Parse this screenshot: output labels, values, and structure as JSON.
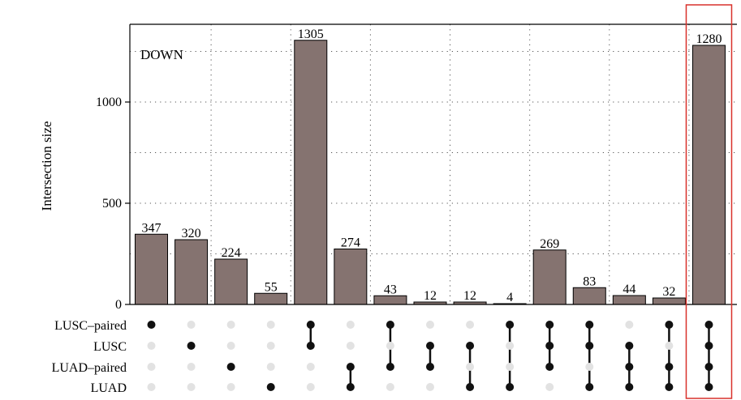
{
  "chart_data": {
    "type": "bar",
    "annotation": "DOWN",
    "ylabel": "Intersection size",
    "ylim": [
      0,
      1400
    ],
    "yticks": [
      0,
      500,
      1000
    ],
    "grid": true,
    "sets": [
      "LUSC–paired",
      "LUSC",
      "LUAD–paired",
      "LUAD"
    ],
    "values": [
      347,
      320,
      224,
      55,
      1305,
      274,
      43,
      12,
      12,
      4,
      269,
      83,
      44,
      32,
      1280
    ],
    "value_labels": [
      "347",
      "320",
      "224",
      "55",
      "1305",
      "274",
      "43",
      "12",
      "12",
      "4",
      "269",
      "83",
      "44",
      "32",
      "1280"
    ],
    "membership": [
      [
        0
      ],
      [
        1
      ],
      [
        2
      ],
      [
        3
      ],
      [
        0,
        1
      ],
      [
        2,
        3
      ],
      [
        0,
        2
      ],
      [
        1,
        2
      ],
      [
        1,
        3
      ],
      [
        0,
        3
      ],
      [
        0,
        1,
        2
      ],
      [
        0,
        1,
        3
      ],
      [
        1,
        2,
        3
      ],
      [
        0,
        2,
        3
      ],
      [
        0,
        1,
        2,
        3
      ]
    ],
    "highlighted_column": 14,
    "colors": {
      "bar": "#857370",
      "dot_active": "#111111",
      "dot_inactive": "#e2e2e2",
      "highlight": "#d9312b"
    }
  }
}
